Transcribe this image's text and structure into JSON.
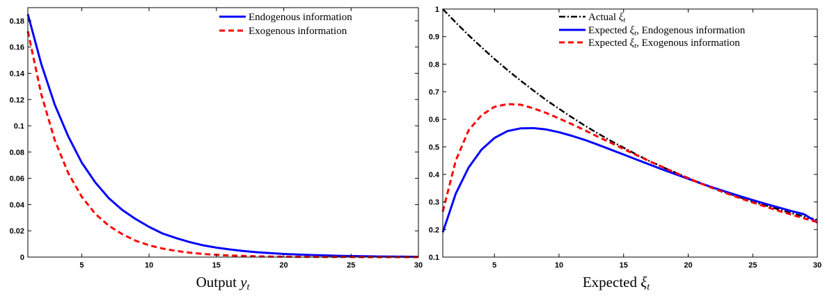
{
  "chart_data": [
    {
      "type": "line",
      "caption_text": "Output",
      "caption_math": "y",
      "caption_sub": "t",
      "x": [
        1,
        2,
        3,
        4,
        5,
        6,
        7,
        8,
        9,
        10,
        11,
        12,
        13,
        14,
        15,
        16,
        17,
        18,
        19,
        20,
        21,
        22,
        23,
        24,
        25,
        26,
        27,
        28,
        29,
        30
      ],
      "xlim": [
        1,
        30
      ],
      "ylim": [
        0,
        0.19
      ],
      "xticks": [
        5,
        10,
        15,
        20,
        25,
        30
      ],
      "yticks": [
        0,
        0.02,
        0.04,
        0.06,
        0.08,
        0.1,
        0.12,
        0.14,
        0.16,
        0.18
      ],
      "ytick_labels": [
        "0",
        "0.02",
        "0.04",
        "0.06",
        "0.08",
        "0.1",
        "0.12",
        "0.14",
        "0.16",
        "0.18"
      ],
      "legend_position": "top-right",
      "grid": false,
      "series": [
        {
          "name": "Endogenous information",
          "color": "#0000ff",
          "style": "solid",
          "values": [
            0.185,
            0.147,
            0.116,
            0.092,
            0.072,
            0.057,
            0.045,
            0.036,
            0.029,
            0.023,
            0.018,
            0.0145,
            0.0115,
            0.009,
            0.0072,
            0.0058,
            0.0046,
            0.0037,
            0.003,
            0.0024,
            0.002,
            0.0016,
            0.0013,
            0.001,
            0.0008,
            0.0007,
            0.0005,
            0.0004,
            0.0003,
            0.0002
          ]
        },
        {
          "name": "Exogenous information",
          "color": "#ff0000",
          "style": "dashed",
          "values": [
            0.172,
            0.124,
            0.089,
            0.064,
            0.046,
            0.033,
            0.024,
            0.0175,
            0.0125,
            0.009,
            0.0065,
            0.0047,
            0.0034,
            0.0024,
            0.0017,
            0.0012,
            0.0009,
            0.0006,
            0.0004,
            0.0003,
            0.0002,
            0.0002,
            0.0001,
            0.0001,
            0.0001,
            0.0,
            0.0,
            0.0,
            0.0,
            0.0
          ]
        }
      ]
    },
    {
      "type": "line",
      "caption_text": "Expected",
      "caption_math": "ξ",
      "caption_sub": "t",
      "x": [
        1,
        2,
        3,
        4,
        5,
        6,
        7,
        8,
        9,
        10,
        11,
        12,
        13,
        14,
        15,
        16,
        17,
        18,
        19,
        20,
        21,
        22,
        23,
        24,
        25,
        26,
        27,
        28,
        29,
        30
      ],
      "xlim": [
        1,
        30
      ],
      "ylim": [
        0.1,
        1
      ],
      "xticks": [
        5,
        10,
        15,
        20,
        25,
        30
      ],
      "yticks": [
        0.1,
        0.2,
        0.3,
        0.4,
        0.5,
        0.6,
        0.7,
        0.8,
        0.9,
        1
      ],
      "ytick_labels": [
        "0.1",
        "0.2",
        "0.3",
        "0.4",
        "0.5",
        "0.6",
        "0.7",
        "0.8",
        "0.9",
        "1"
      ],
      "legend_position": "top-right",
      "grid": false,
      "series": [
        {
          "name": "Actual ξ_t",
          "label_text": "Actual ",
          "label_math": "ξ",
          "label_sub": "t",
          "label_rest": "",
          "color": "#000000",
          "style": "dashdot",
          "values": [
            1.0,
            0.951,
            0.905,
            0.861,
            0.819,
            0.779,
            0.741,
            0.705,
            0.67,
            0.638,
            0.607,
            0.577,
            0.549,
            0.522,
            0.497,
            0.472,
            0.449,
            0.427,
            0.407,
            0.387,
            0.368,
            0.35,
            0.333,
            0.317,
            0.301,
            0.287,
            0.273,
            0.259,
            0.247,
            0.235
          ]
        },
        {
          "name": "Expected ξ_t, Endogenous information",
          "label_text": "Expected ",
          "label_math": "ξ",
          "label_sub": "t",
          "label_rest": ", Endogenous information",
          "color": "#0000ff",
          "style": "solid",
          "values": [
            0.19,
            0.33,
            0.425,
            0.49,
            0.532,
            0.557,
            0.567,
            0.568,
            0.563,
            0.553,
            0.54,
            0.525,
            0.508,
            0.49,
            0.472,
            0.454,
            0.436,
            0.418,
            0.401,
            0.384,
            0.367,
            0.351,
            0.336,
            0.321,
            0.307,
            0.293,
            0.28,
            0.267,
            0.255,
            0.225
          ]
        },
        {
          "name": "Expected ξ_t, Exogenous information",
          "label_text": "Expected ",
          "label_math": "ξ",
          "label_sub": "t",
          "label_rest": ", Exogenous information",
          "color": "#ff0000",
          "style": "dashed",
          "values": [
            0.265,
            0.45,
            0.56,
            0.615,
            0.645,
            0.655,
            0.653,
            0.64,
            0.623,
            0.603,
            0.582,
            0.56,
            0.537,
            0.515,
            0.492,
            0.47,
            0.448,
            0.427,
            0.406,
            0.386,
            0.367,
            0.348,
            0.331,
            0.314,
            0.298,
            0.283,
            0.268,
            0.254,
            0.24,
            0.227
          ]
        }
      ]
    }
  ]
}
